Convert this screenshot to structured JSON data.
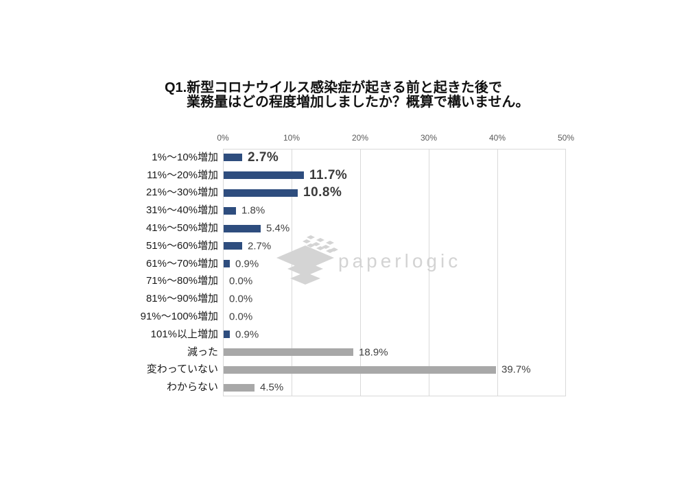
{
  "title": {
    "line1": "Q1.新型コロナウイルス感染症が起きる前と起きた後で",
    "line2": "業務量はどの程度増加しましたか？概算で構いません。"
  },
  "watermark": {
    "text": "paperlogic",
    "icon": "paperlogic-layers-logo"
  },
  "colors": {
    "bar_blue": "#2e4d7e",
    "bar_gray": "#a8a8a8",
    "grid": "#d9d9d9",
    "axis_text": "#595959",
    "value_text": "#404040",
    "value_text_emphasis": "#3a3a3a",
    "category_text": "#1a1a1a",
    "watermark_gray": "#d3d3d3"
  },
  "chart_data": {
    "type": "bar",
    "orientation": "horizontal",
    "title": "Q1.新型コロナウイルス感染症が起きる前と起きた後で 業務量はどの程度増加しましたか？概算で構いません。",
    "categories": [
      "1%〜10%増加",
      "11%〜20%増加",
      "21%〜30%増加",
      "31%〜40%増加",
      "41%〜50%増加",
      "51%〜60%増加",
      "61%〜70%増加",
      "71%〜80%増加",
      "81%〜90%増加",
      "91%〜100%増加",
      "101%以上増加",
      "減った",
      "変わっていない",
      "わからない"
    ],
    "values": [
      2.7,
      11.7,
      10.8,
      1.8,
      5.4,
      2.7,
      0.9,
      0.0,
      0.0,
      0.0,
      0.9,
      18.9,
      39.7,
      4.5
    ],
    "value_labels": [
      "2.7%",
      "11.7%",
      "10.8%",
      "1.8%",
      "5.4%",
      "2.7%",
      "0.9%",
      "0.0%",
      "0.0%",
      "0.0%",
      "0.9%",
      "18.9%",
      "39.7%",
      "4.5%"
    ],
    "emphasized": [
      true,
      true,
      true,
      false,
      false,
      false,
      false,
      false,
      false,
      false,
      false,
      false,
      false,
      false
    ],
    "bar_colors": [
      "blue",
      "blue",
      "blue",
      "blue",
      "blue",
      "blue",
      "blue",
      "blue",
      "blue",
      "blue",
      "blue",
      "gray",
      "gray",
      "gray"
    ],
    "x_ticks": [
      "0%",
      "10%",
      "20%",
      "30%",
      "40%",
      "50%"
    ],
    "xlim": [
      0,
      50
    ],
    "grid": true,
    "axis_position": "top",
    "legend": false
  }
}
